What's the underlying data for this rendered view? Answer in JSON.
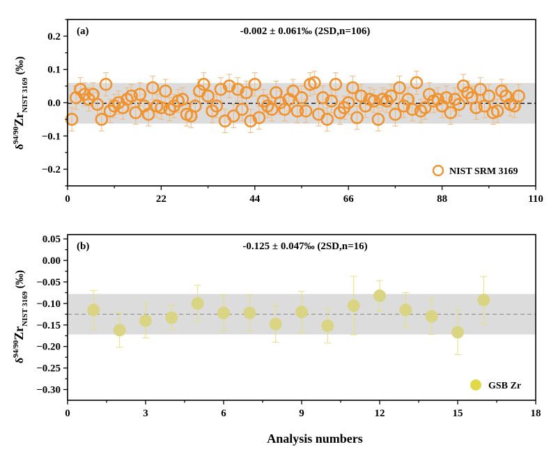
{
  "figure": {
    "xlabel": "Analysis numbers",
    "ylabel": {
      "delta": "δ",
      "iso": "94/90",
      "elem": "Zr",
      "sub": "NIST 3169",
      "unit": " (‰)"
    }
  },
  "chart_data": [
    {
      "type": "scatter",
      "panel_label": "(a)",
      "annotation": "-0.002 ± 0.061‰ (2SD,n=106)",
      "legend": "NIST SRM 3169",
      "legend_position": "bottom-right",
      "colors": {
        "marker": "#F0922E",
        "band": "#DCDCDC",
        "mean_line": "#000000",
        "error_bar": "#F0B878"
      },
      "marker_style": "hollow-circle",
      "xlim": [
        0,
        110
      ],
      "ylim": [
        -0.25,
        0.25
      ],
      "xticks": [
        0,
        22,
        44,
        66,
        88,
        110
      ],
      "yticks": [
        -0.2,
        -0.1,
        0.0,
        0.1,
        0.2
      ],
      "ytick_labels": [
        "−0.2",
        "−0.1",
        "0.0",
        "0.1",
        "0.2"
      ],
      "mean": -0.002,
      "band": [
        -0.063,
        0.059
      ],
      "error": 0.035,
      "grid": false,
      "x": [
        1,
        2,
        3,
        4,
        5,
        6,
        7,
        8,
        9,
        10,
        11,
        12,
        13,
        14,
        15,
        16,
        17,
        18,
        19,
        20,
        21,
        22,
        23,
        24,
        25,
        26,
        27,
        28,
        29,
        30,
        31,
        32,
        33,
        34,
        35,
        36,
        37,
        38,
        39,
        40,
        41,
        42,
        43,
        44,
        45,
        46,
        47,
        48,
        49,
        50,
        51,
        52,
        53,
        54,
        55,
        56,
        57,
        58,
        59,
        60,
        61,
        62,
        63,
        64,
        65,
        66,
        67,
        68,
        69,
        70,
        71,
        72,
        73,
        74,
        75,
        76,
        77,
        78,
        79,
        80,
        81,
        82,
        83,
        84,
        85,
        86,
        87,
        88,
        89,
        90,
        91,
        92,
        93,
        94,
        95,
        96,
        97,
        98,
        99,
        100,
        101,
        102,
        103,
        104,
        105,
        106
      ],
      "y": [
        -0.05,
        0.015,
        0.04,
        0.025,
        0.01,
        0.025,
        -0.005,
        -0.05,
        0.055,
        -0.025,
        -0.01,
        0.0,
        -0.015,
        0.01,
        0.02,
        -0.03,
        0.025,
        -0.01,
        -0.035,
        0.045,
        -0.01,
        -0.015,
        0.035,
        -0.02,
        -0.01,
        0.005,
        0.01,
        -0.035,
        -0.04,
        -0.01,
        0.035,
        0.055,
        0.02,
        -0.025,
        -0.01,
        0.04,
        -0.055,
        0.05,
        -0.04,
        0.04,
        -0.02,
        0.03,
        -0.055,
        0.055,
        -0.045,
        0.005,
        -0.01,
        -0.02,
        0.03,
        0.0,
        -0.02,
        0.01,
        0.035,
        -0.025,
        0.015,
        -0.025,
        0.055,
        0.06,
        -0.035,
        0.015,
        -0.05,
        0.005,
        0.055,
        -0.03,
        -0.015,
        0.0,
        0.045,
        -0.045,
        0.02,
        -0.01,
        0.01,
        0.005,
        -0.05,
        0.01,
        0.005,
        0.02,
        -0.035,
        0.045,
        -0.01,
        0.01,
        -0.02,
        0.06,
        -0.025,
        -0.015,
        0.025,
        0.005,
        0.01,
        -0.01,
        0.015,
        -0.03,
        0.01,
        -0.005,
        0.05,
        0.03,
        0.015,
        -0.015,
        0.04,
        -0.01,
        0.02,
        -0.03,
        -0.025,
        0.035,
        0.02,
        -0.005,
        -0.01,
        0.02
      ]
    },
    {
      "type": "scatter",
      "panel_label": "(b)",
      "annotation": "-0.125 ± 0.047‰ (2SD,n=16)",
      "legend": "GSB Zr",
      "legend_position": "bottom-right",
      "colors": {
        "marker": "#D8D47E",
        "band": "#DCDCDC",
        "mean_line": "#888888",
        "error_bar": "#E6E17A",
        "legend_marker": "#E2D94A"
      },
      "marker_style": "filled-circle",
      "xlim": [
        0,
        18
      ],
      "ylim": [
        -0.325,
        0.06
      ],
      "xticks": [
        0,
        3,
        6,
        9,
        12,
        15,
        18
      ],
      "yticks": [
        0.05,
        0.0,
        -0.05,
        -0.1,
        -0.15,
        -0.2,
        -0.25,
        -0.3
      ],
      "ytick_labels": [
        "0.05",
        "0.00",
        "−0.05",
        "−0.10",
        "−0.15",
        "−0.20",
        "−0.25",
        "−0.30"
      ],
      "mean": -0.125,
      "band": [
        -0.172,
        -0.078
      ],
      "grid": false,
      "x": [
        1,
        2,
        3,
        4,
        5,
        6,
        7,
        8,
        9,
        10,
        11,
        12,
        13,
        14,
        15,
        16
      ],
      "y": [
        -0.115,
        -0.162,
        -0.14,
        -0.133,
        -0.1,
        -0.122,
        -0.122,
        -0.148,
        -0.12,
        -0.152,
        -0.105,
        -0.082,
        -0.115,
        -0.13,
        -0.167,
        -0.092
      ],
      "err_low": [
        0.045,
        0.04,
        0.04,
        0.028,
        0.042,
        0.042,
        0.042,
        0.042,
        0.048,
        0.04,
        0.068,
        0.035,
        0.04,
        0.042,
        0.052,
        0.055
      ],
      "err_high": [
        0.045,
        0.04,
        0.04,
        0.028,
        0.042,
        0.042,
        0.042,
        0.042,
        0.048,
        0.04,
        0.068,
        0.035,
        0.04,
        0.042,
        0.052,
        0.055
      ]
    }
  ]
}
